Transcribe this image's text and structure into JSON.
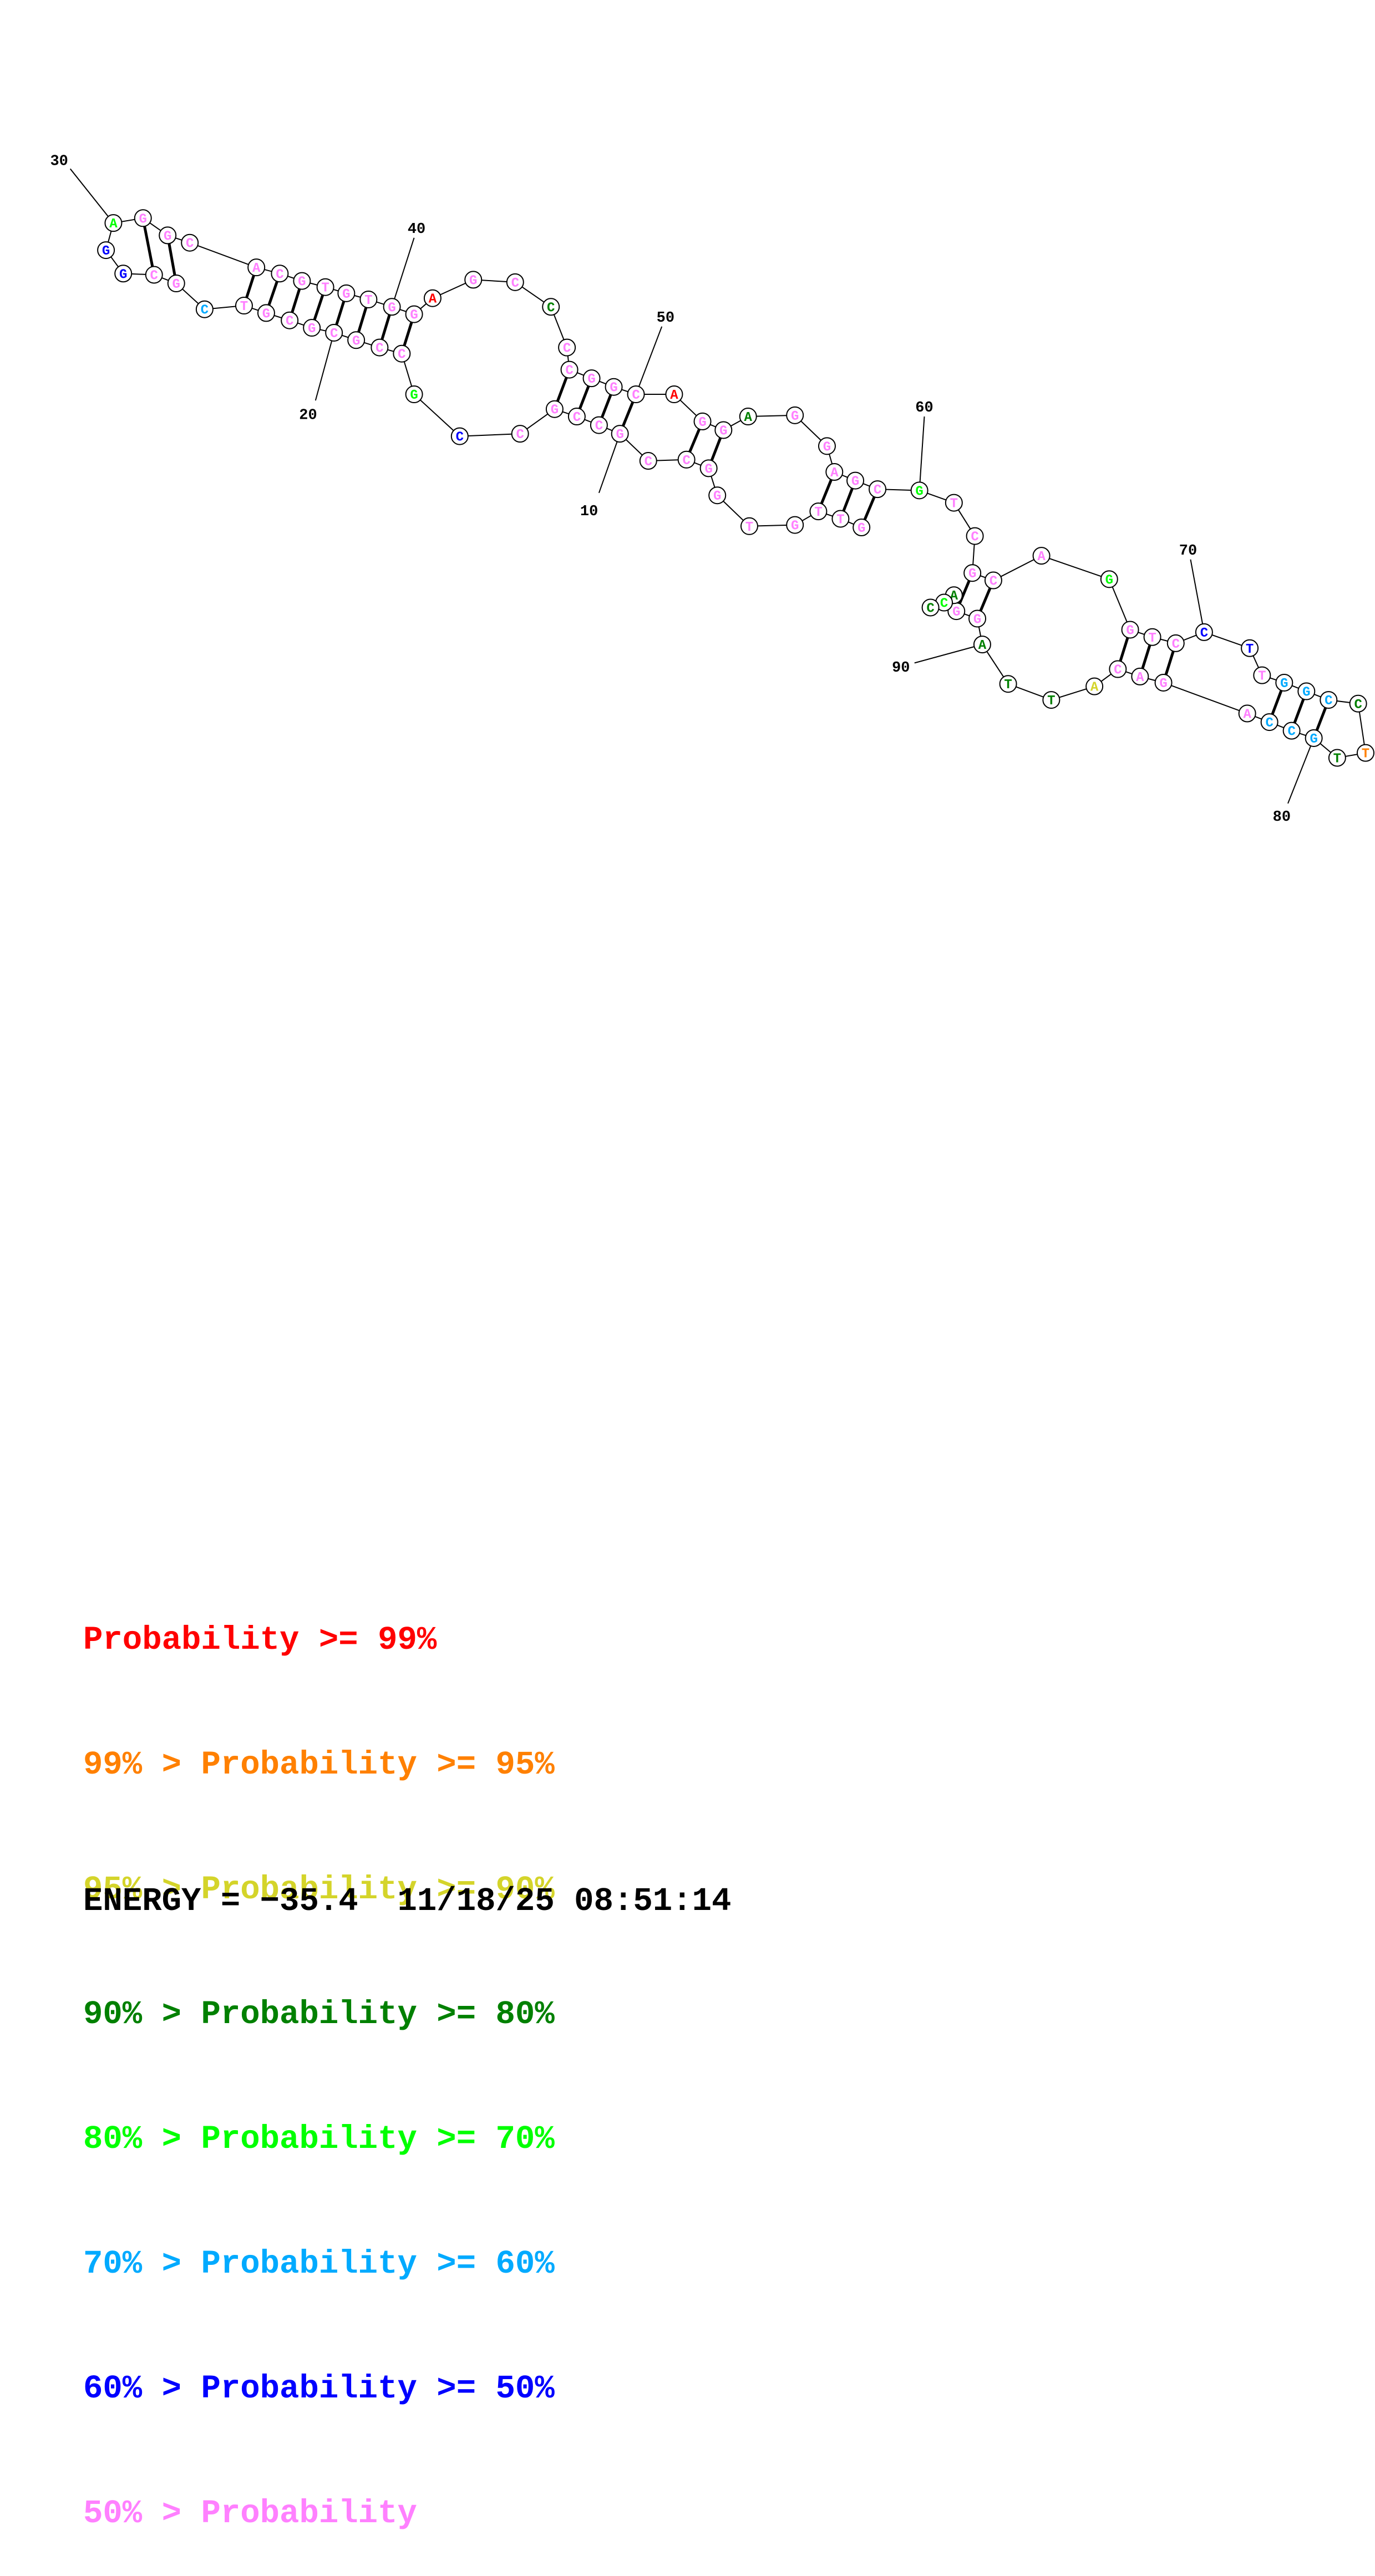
{
  "colors": {
    "p99": "#ff0000",
    "p95": "#ff8000",
    "p90": "#d4d42a",
    "p80": "#008000",
    "p70": "#00ff00",
    "p60": "#00aaff",
    "p50": "#0000ff",
    "plow": "#ff80ff"
  },
  "nucleotides": [
    {
      "n": 1,
      "b": "T",
      "c": "p80"
    },
    {
      "n": 2,
      "b": "T",
      "c": "p80"
    },
    {
      "n": 3,
      "b": "C",
      "c": "p60"
    },
    {
      "n": 4,
      "b": "C",
      "c": "p60"
    },
    {
      "n": 5,
      "b": "C",
      "c": "plow"
    },
    {
      "n": 6,
      "b": "C",
      "c": "plow"
    },
    {
      "n": 7,
      "b": "C",
      "c": "plow"
    },
    {
      "n": 8,
      "b": "G",
      "c": "plow"
    },
    {
      "n": 9,
      "b": "G",
      "c": "plow"
    },
    {
      "n": 10,
      "b": "G",
      "c": "plow"
    },
    {
      "n": 11,
      "b": "G",
      "c": "plow"
    },
    {
      "n": 12,
      "b": "C",
      "c": "plow"
    },
    {
      "n": 13,
      "b": "C",
      "c": "plow"
    },
    {
      "n": 14,
      "b": "C",
      "c": "plow"
    },
    {
      "n": 15,
      "b": "G",
      "c": "p70"
    },
    {
      "n": 16,
      "b": "C",
      "c": "plow"
    },
    {
      "n": 17,
      "b": "C",
      "c": "plow"
    },
    {
      "n": 18,
      "b": "G",
      "c": "plow"
    },
    {
      "n": 19,
      "b": "G",
      "c": "plow"
    },
    {
      "n": 20,
      "b": "C",
      "c": "plow"
    },
    {
      "n": 21,
      "b": "G",
      "c": "plow"
    },
    {
      "n": 22,
      "b": "C",
      "c": "plow"
    },
    {
      "n": 23,
      "b": "G",
      "c": "plow"
    },
    {
      "n": 24,
      "b": "T",
      "c": "plow"
    },
    {
      "n": 25,
      "b": "C",
      "c": "p60"
    },
    {
      "n": 26,
      "b": "G",
      "c": "plow"
    },
    {
      "n": 27,
      "b": "C",
      "c": "plow"
    },
    {
      "n": 28,
      "b": "G",
      "c": "p50"
    },
    {
      "n": 29,
      "b": "G",
      "c": "p50"
    },
    {
      "n": 30,
      "b": "A",
      "c": "p70"
    },
    {
      "n": 31,
      "b": "G",
      "c": "plow"
    },
    {
      "n": 32,
      "b": "G",
      "c": "plow"
    },
    {
      "n": 33,
      "b": "C",
      "c": "plow"
    },
    {
      "n": 34,
      "b": "A",
      "c": "plow"
    },
    {
      "n": 35,
      "b": "C",
      "c": "plow"
    },
    {
      "n": 36,
      "b": "G",
      "c": "plow"
    },
    {
      "n": 37,
      "b": "T",
      "c": "plow"
    },
    {
      "n": 38,
      "b": "G",
      "c": "plow"
    },
    {
      "n": 39,
      "b": "T",
      "c": "plow"
    },
    {
      "n": 40,
      "b": "G",
      "c": "plow"
    },
    {
      "n": 41,
      "b": "G",
      "c": "plow"
    },
    {
      "n": 42,
      "b": "A",
      "c": "p99"
    },
    {
      "n": 43,
      "b": "G",
      "c": "plow"
    },
    {
      "n": 44,
      "b": "C",
      "c": "plow"
    },
    {
      "n": 45,
      "b": "C",
      "c": "p80"
    },
    {
      "n": 46,
      "b": "C",
      "c": "plow"
    },
    {
      "n": 47,
      "b": "C",
      "c": "plow"
    },
    {
      "n": 48,
      "b": "G",
      "c": "plow"
    },
    {
      "n": 49,
      "b": "G",
      "c": "plow"
    },
    {
      "n": 50,
      "b": "C",
      "c": "plow"
    },
    {
      "n": 51,
      "b": "A",
      "c": "p99"
    },
    {
      "n": 52,
      "b": "G",
      "c": "plow"
    },
    {
      "n": 53,
      "b": "C",
      "c": "plow"
    },
    {
      "n": 54,
      "b": "A",
      "c": "p80"
    },
    {
      "n": 55,
      "b": "G",
      "c": "plow"
    },
    {
      "n": 56,
      "b": "G",
      "c": "plow"
    },
    {
      "n": 57,
      "b": "A",
      "c": "plow"
    },
    {
      "n": 58,
      "b": "G",
      "c": "plow"
    },
    {
      "n": 59,
      "b": "C",
      "c": "plow"
    },
    {
      "n": 60,
      "b": "G",
      "c": "p70"
    },
    {
      "n": 61,
      "b": "T",
      "c": "plow"
    },
    {
      "n": 62,
      "b": "C",
      "c": "plow"
    },
    {
      "n": 63,
      "b": "G",
      "c": "plow"
    },
    {
      "n": 64,
      "b": "C",
      "c": "plow"
    },
    {
      "n": 65,
      "b": "A",
      "c": "plow"
    },
    {
      "n": 66,
      "b": "G",
      "c": "p70"
    },
    {
      "n": 67,
      "b": "G",
      "c": "plow"
    },
    {
      "n": 68,
      "b": "T",
      "c": "plow"
    },
    {
      "n": 69,
      "b": "C",
      "c": "plow"
    },
    {
      "n": 70,
      "b": "C",
      "c": "p50"
    },
    {
      "n": 71,
      "b": "T",
      "c": "p50"
    },
    {
      "n": 72,
      "b": "T",
      "c": "plow"
    },
    {
      "n": 73,
      "b": "G",
      "c": "p60"
    },
    {
      "n": 74,
      "b": "G",
      "c": "p60"
    },
    {
      "n": 75,
      "b": "C",
      "c": "p60"
    },
    {
      "n": 76,
      "b": "C",
      "c": "p80"
    },
    {
      "n": 77,
      "b": "T",
      "c": "p95"
    },
    {
      "n": 78,
      "b": "G",
      "c": "p60"
    },
    {
      "n": 79,
      "b": "T",
      "c": "p80"
    },
    {
      "n": 80,
      "b": "G",
      "c": "p60"
    },
    {
      "n": 81,
      "b": "C",
      "c": "p60"
    },
    {
      "n": 82,
      "b": "C",
      "c": "p60"
    },
    {
      "n": 83,
      "b": "A",
      "c": "plow"
    },
    {
      "n": 84,
      "b": "G",
      "c": "plow"
    },
    {
      "n": 85,
      "b": "A",
      "c": "plow"
    },
    {
      "n": 86,
      "b": "C",
      "c": "plow"
    },
    {
      "n": 87,
      "b": "A",
      "c": "p90"
    },
    {
      "n": 88,
      "b": "T",
      "c": "p80"
    },
    {
      "n": 89,
      "b": "T",
      "c": "p80"
    },
    {
      "n": 90,
      "b": "A",
      "c": "p80"
    },
    {
      "n": 91,
      "b": "G",
      "c": "plow"
    },
    {
      "n": 92,
      "b": "G",
      "c": "plow"
    },
    {
      "n": 93,
      "b": "A",
      "c": "p80"
    },
    {
      "n": 94,
      "b": "C",
      "c": "p70"
    },
    {
      "n": 95,
      "b": "C",
      "c": "p80"
    }
  ],
  "index_labels": [
    "10",
    "20",
    "30",
    "40",
    "50",
    "60",
    "70",
    "80",
    "90"
  ],
  "legend": [
    {
      "prefix": "",
      "label": "Probability >= 99%",
      "c": "p99"
    },
    {
      "prefix": "99% > ",
      "label": "Probability >= 95%",
      "c": "p95"
    },
    {
      "prefix": "95% > ",
      "label": "Probability >= 90%",
      "c": "p90"
    },
    {
      "prefix": "90% > ",
      "label": "Probability >= 80%",
      "c": "p80"
    },
    {
      "prefix": "80% > ",
      "label": "Probability >= 70%",
      "c": "p70"
    },
    {
      "prefix": "70% > ",
      "label": "Probability >= 60%",
      "c": "p60"
    },
    {
      "prefix": "60% > ",
      "label": "Probability >= 50%",
      "c": "p50"
    },
    {
      "prefix": "50% > ",
      "label": "Probability",
      "c": "plow"
    }
  ],
  "footer": {
    "energy": "ENERGY = −35.4",
    "timestamp": "11/18/25 08:51:14"
  }
}
